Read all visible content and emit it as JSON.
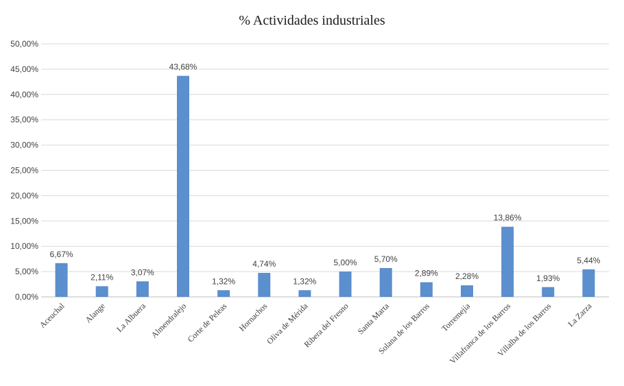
{
  "chart_data": {
    "type": "bar",
    "title": "% Actividades industriales",
    "xlabel": "",
    "ylabel": "",
    "ylim": [
      0,
      50
    ],
    "y_ticks": [
      "0,00%",
      "5,00%",
      "10,00%",
      "15,00%",
      "20,00%",
      "25,00%",
      "30,00%",
      "35,00%",
      "40,00%",
      "45,00%",
      "50,00%"
    ],
    "grid": true,
    "legend": "none",
    "bar_color": "#5b8fcd",
    "categories": [
      "Aceuchal",
      "Alange",
      "La Albuera",
      "Almendralejo",
      "Corte de Peleas",
      "Hornachos",
      "Oliva de Mérida",
      "Ribera del Fresno",
      "Santa Marta",
      "Solana de los Barros",
      "Torremejía",
      "Villafranca de los Barros",
      "Villalba de los Barros",
      "La Zarza"
    ],
    "values": [
      6.67,
      2.11,
      3.07,
      43.68,
      1.32,
      4.74,
      1.32,
      5.0,
      5.7,
      2.89,
      2.28,
      13.86,
      1.93,
      5.44
    ],
    "data_labels": [
      "6,67%",
      "2,11%",
      "3,07%",
      "43,68%",
      "1,32%",
      "4,74%",
      "1,32%",
      "5,00%",
      "5,70%",
      "2,89%",
      "2,28%",
      "13,86%",
      "1,93%",
      "5,44%"
    ]
  }
}
